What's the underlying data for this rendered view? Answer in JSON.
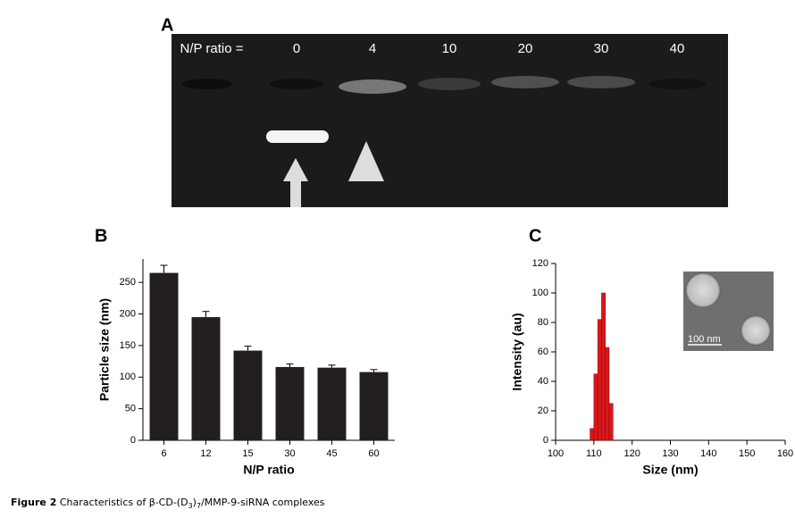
{
  "panel_labels": [
    "A",
    "B",
    "C"
  ],
  "gel": {
    "header": "N/P ratio =",
    "lanes": [
      "0",
      "4",
      "10",
      "20",
      "30",
      "40"
    ]
  },
  "chart_data": [
    {
      "type": "bar",
      "x_label": "N/P ratio",
      "y_label": "Particle size (nm)",
      "categories": [
        "6",
        "12",
        "15",
        "30",
        "45",
        "60"
      ],
      "values": [
        265,
        195,
        142,
        116,
        115,
        108
      ],
      "errors": [
        12,
        9,
        7,
        5,
        4,
        4
      ],
      "color": "#231f20",
      "ylim": [
        0,
        287
      ],
      "yticks": [
        0,
        50,
        100,
        150,
        200,
        250
      ]
    },
    {
      "type": "histogram",
      "x_label": "Size (nm)",
      "y_label": "Intensity (au)",
      "bins": [
        109,
        110,
        111,
        112,
        113,
        114,
        115
      ],
      "values": [
        8,
        45,
        82,
        100,
        63,
        25
      ],
      "color": "#d7191c",
      "xlim": [
        100,
        160
      ],
      "xticks": [
        100,
        110,
        120,
        130,
        140,
        150,
        160
      ],
      "ylim": [
        0,
        120
      ],
      "yticks": [
        0,
        20,
        40,
        60,
        80,
        100,
        120
      ],
      "annotations": [
        "100 nm"
      ]
    }
  ],
  "caption": {
    "label": "Figure 2",
    "parts": [
      "Characteristics of β-CD-(D",
      "3",
      ")",
      "7",
      "/MMP-9-siRNA complexes"
    ]
  }
}
